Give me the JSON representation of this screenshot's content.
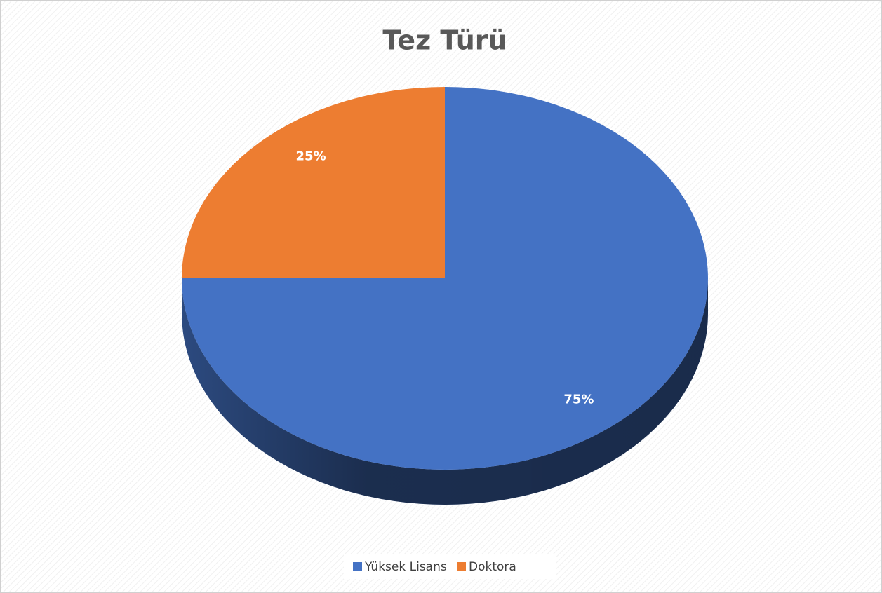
{
  "chart_data": {
    "type": "pie",
    "title": "Tez Türü",
    "categories": [
      "Yüksek Lisans",
      "Doktora"
    ],
    "values": [
      75,
      25
    ],
    "value_labels": [
      "75%",
      "25%"
    ],
    "colors": [
      "#4472c4",
      "#ed7d31"
    ],
    "legend": "bottom"
  }
}
